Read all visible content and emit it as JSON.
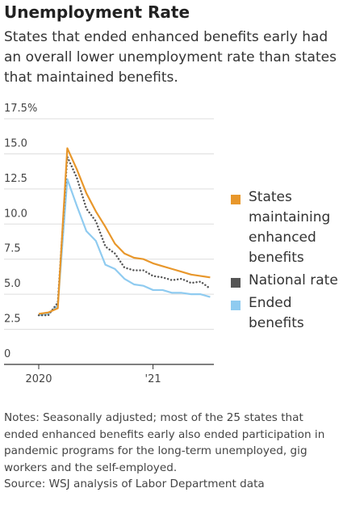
{
  "chart_data": {
    "type": "line",
    "title": "Unemployment Rate",
    "subtitle": "States that ended enhanced benefits early had an overall lower unemployment rate than states that maintained benefits.",
    "categories": [
      "2020",
      null,
      null,
      null,
      null,
      null,
      null,
      null,
      null,
      null,
      null,
      null,
      "'21",
      null,
      null,
      null,
      null,
      null,
      null
    ],
    "series": [
      {
        "name": "States maintaining enhanced benefits",
        "color": "#e8972b",
        "dash": "solid",
        "values": [
          3.6,
          3.7,
          4.0,
          15.4,
          13.9,
          12.2,
          10.9,
          9.8,
          8.6,
          7.9,
          7.6,
          7.5,
          7.2,
          7.0,
          6.8,
          6.6,
          6.4,
          6.3,
          6.2
        ]
      },
      {
        "name": "National rate",
        "color": "#555555",
        "dash": "dotted",
        "values": [
          3.5,
          3.5,
          4.4,
          14.8,
          13.3,
          11.1,
          10.2,
          8.4,
          7.9,
          6.9,
          6.7,
          6.7,
          6.3,
          6.2,
          6.0,
          6.1,
          5.8,
          5.9,
          5.4
        ]
      },
      {
        "name": "Ended benefits",
        "color": "#8fcbf0",
        "dash": "solid",
        "values": [
          3.5,
          3.6,
          4.2,
          13.2,
          11.3,
          9.5,
          8.8,
          7.1,
          6.8,
          6.1,
          5.7,
          5.6,
          5.3,
          5.3,
          5.1,
          5.1,
          5.0,
          5.0,
          4.8
        ]
      }
    ],
    "ylim": [
      0,
      17.5
    ],
    "yticks": [
      0,
      2.5,
      {
        "value": 5,
        "label": "5.0"
      },
      7.5,
      {
        "value": 10,
        "label": "10.0"
      },
      {
        "value": 12.5,
        "label": "12.5"
      },
      {
        "value": 15,
        "label": "15.0"
      },
      {
        "value": 17.5,
        "label": "17.5%"
      }
    ],
    "grid": true,
    "legend": "right",
    "notes": "Notes: Seasonally adjusted; most of the 25 states that ended enhanced benefits early also ended participation in pandemic programs for the long-term unemployed, gig workers and the self-employed.",
    "source": "Source: WSJ analysis of Labor Department data"
  }
}
